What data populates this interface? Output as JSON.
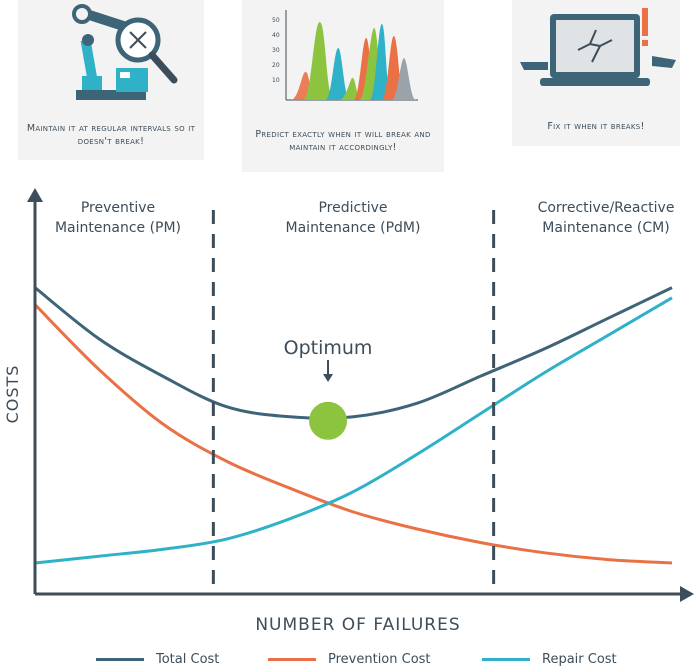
{
  "panels": [
    {
      "caption": "Maintain it at regular intervals so it doesn't break!",
      "icon": "robot-arm-magnifier-icon"
    },
    {
      "caption": "Predict exactly when it will break and maintain it accordingly!",
      "icon": "vibration-spectrum-chart-icon"
    },
    {
      "caption": "Fix it when it breaks!",
      "icon": "broken-laptop-icon"
    }
  ],
  "mini_chart": {
    "y_ticks": [
      "50",
      "40",
      "30",
      "20",
      "10"
    ]
  },
  "colors": {
    "total": "#3e6478",
    "prevention": "#ea7146",
    "repair": "#2fb2c8",
    "optimum": "#8cc43f",
    "axis": "#3d4d5a"
  },
  "chart_data": {
    "type": "line",
    "xlabel": "NUMBER OF FAILURES",
    "ylabel": "COSTS",
    "regions": [
      {
        "line1": "Preventive",
        "line2": "Maintenance (PM)"
      },
      {
        "line1": "Predictive",
        "line2": "Maintenance (PdM)"
      },
      {
        "line1": "Corrective/Reactive",
        "line2": "Maintenance (CM)"
      }
    ],
    "annotation": "Optimum",
    "x": [
      0.0,
      0.1,
      0.2,
      0.3,
      0.4,
      0.5,
      0.6,
      0.7,
      0.8,
      0.9,
      1.0
    ],
    "series": [
      {
        "name": "Total Cost",
        "values": [
          0.86,
          0.71,
          0.6,
          0.51,
          0.48,
          0.48,
          0.52,
          0.6,
          0.68,
          0.77,
          0.86
        ]
      },
      {
        "name": "Prevention Cost",
        "values": [
          0.81,
          0.62,
          0.46,
          0.35,
          0.27,
          0.2,
          0.15,
          0.11,
          0.08,
          0.06,
          0.05
        ]
      },
      {
        "name": "Repair Cost",
        "values": [
          0.05,
          0.07,
          0.09,
          0.12,
          0.18,
          0.26,
          0.37,
          0.49,
          0.61,
          0.72,
          0.83
        ]
      }
    ],
    "optimum_x": 0.46,
    "dividers_x": [
      0.28,
      0.72
    ],
    "xlim": [
      0,
      1
    ],
    "ylim": [
      0,
      1
    ],
    "grid": false
  }
}
